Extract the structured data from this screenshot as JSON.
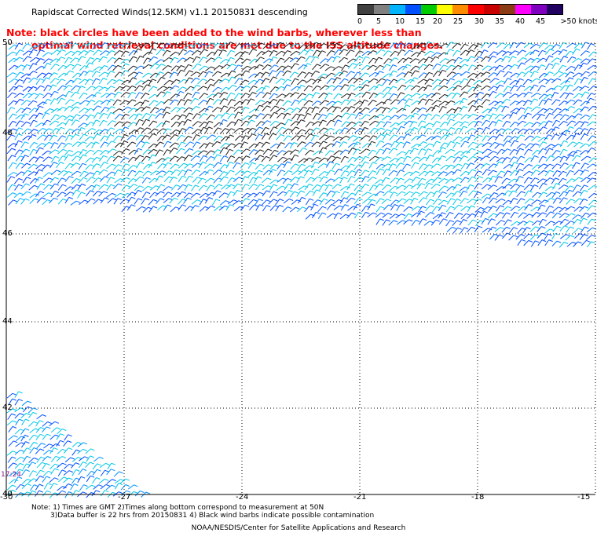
{
  "title": "Rapidscat Corrected Winds(12.5KM) v1.1 20150831 descending",
  "note_red": {
    "line1": "Note: black circles have been added to the wind barbs, wherever less than",
    "line2": "optimal wind retrieval conditions are met due to the ISS altitude changes."
  },
  "legend": {
    "colors": [
      "#404040",
      "#808080",
      "#00b4ff",
      "#0050ff",
      "#00cc00",
      "#ffff00",
      "#ff8c00",
      "#ff0000",
      "#c80000",
      "#8c3c14",
      "#ff00ff",
      "#8000c0",
      "#200060"
    ],
    "labels": [
      "0",
      "5",
      "10",
      "15",
      "20",
      "25",
      "30",
      "35",
      "40",
      "45",
      ">50 knots"
    ]
  },
  "axes": {
    "y_ticks": [
      "50",
      "48",
      "46",
      "44",
      "42",
      "40"
    ],
    "x_ticks": [
      "-30",
      "-27",
      "-24",
      "-21",
      "-18",
      "-15"
    ]
  },
  "timestamp": "17:24",
  "bottom_notes": {
    "line1": "Note: 1) Times are GMT 2)Times along bottom correspond to measurement at 50N",
    "line2": "3)Data buffer is 22 hrs from 20150831 4) Black wind barbs indicate possible contamination"
  },
  "credit": "NOAA/NESDIS/Center for Satellite Applications and Research"
}
